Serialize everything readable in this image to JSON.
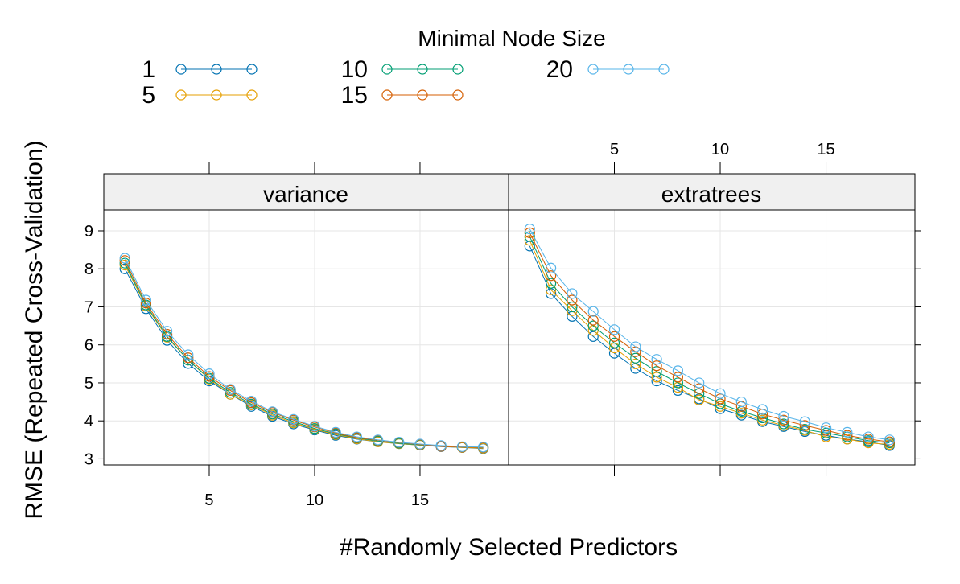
{
  "chart_data": {
    "type": "line",
    "legend": {
      "title": "Minimal Node Size",
      "placement": "top"
    },
    "xlabel": "#Randomly Selected Predictors",
    "ylabel": "RMSE (Repeated Cross-Validation)",
    "x": [
      1,
      2,
      3,
      4,
      5,
      6,
      7,
      8,
      9,
      10,
      11,
      12,
      13,
      14,
      15,
      16,
      17,
      18
    ],
    "xlim": [
      0.0,
      19.2
    ],
    "ylim": [
      2.84,
      9.55
    ],
    "x_ticks": [
      5,
      10,
      15
    ],
    "y_ticks": [
      3,
      4,
      5,
      6,
      7,
      8,
      9
    ],
    "grid": true,
    "panels": [
      {
        "name": "variance",
        "series": [
          {
            "name": "1",
            "color": "#0072B2",
            "values": [
              8.0,
              6.95,
              6.12,
              5.51,
              5.05,
              4.7,
              4.38,
              4.12,
              3.92,
              3.76,
              3.62,
              3.52,
              3.45,
              3.4,
              3.36,
              3.32,
              3.3,
              3.27
            ]
          },
          {
            "name": "5",
            "color": "#E69F00",
            "values": [
              8.1,
              7.02,
              6.2,
              5.6,
              5.1,
              4.7,
              4.42,
              4.15,
              3.95,
              3.78,
              3.64,
              3.53,
              3.45,
              3.4,
              3.36,
              3.33,
              3.3,
              3.28
            ]
          },
          {
            "name": "10",
            "color": "#009E73",
            "values": [
              8.15,
              7.05,
              6.22,
              5.6,
              5.12,
              4.75,
              4.44,
              4.18,
              3.98,
              3.8,
              3.66,
              3.55,
              3.47,
              3.41,
              3.37,
              3.34,
              3.31,
              3.3
            ]
          },
          {
            "name": "15",
            "color": "#D55E00",
            "values": [
              8.22,
              7.1,
              6.28,
              5.66,
              5.17,
              4.8,
              4.48,
              4.22,
              4.02,
              3.84,
              3.68,
              3.56,
              3.49,
              3.43,
              3.38,
              3.33,
              3.31,
              3.3
            ]
          },
          {
            "name": "20",
            "color": "#56B4E9",
            "values": [
              8.28,
              7.18,
              6.36,
              5.74,
              5.24,
              4.83,
              4.52,
              4.24,
              4.04,
              3.86,
              3.7,
              3.58,
              3.5,
              3.44,
              3.39,
              3.35,
              3.32,
              3.31
            ]
          }
        ]
      },
      {
        "name": "extratrees",
        "series": [
          {
            "name": "1",
            "color": "#0072B2",
            "values": [
              8.6,
              7.35,
              6.75,
              6.22,
              5.78,
              5.38,
              5.05,
              4.8,
              4.58,
              4.32,
              4.15,
              3.98,
              3.85,
              3.72,
              3.62,
              3.52,
              3.45,
              3.35
            ]
          },
          {
            "name": "5",
            "color": "#E69F00",
            "values": [
              8.75,
              7.45,
              6.9,
              6.38,
              5.92,
              5.5,
              5.15,
              4.88,
              4.55,
              4.38,
              4.2,
              4.02,
              3.88,
              3.75,
              3.58,
              3.52,
              3.42,
              3.38
            ]
          },
          {
            "name": "10",
            "color": "#009E73",
            "values": [
              8.85,
              7.62,
              7.0,
              6.5,
              6.05,
              5.65,
              5.3,
              5.0,
              4.72,
              4.45,
              4.25,
              4.08,
              3.92,
              3.78,
              3.68,
              3.58,
              3.48,
              3.42
            ]
          },
          {
            "name": "15",
            "color": "#D55E00",
            "values": [
              8.95,
              7.82,
              7.18,
              6.65,
              6.22,
              5.82,
              5.45,
              5.15,
              4.85,
              4.58,
              4.38,
              4.18,
              4.02,
              3.88,
              3.75,
              3.62,
              3.52,
              3.45
            ]
          },
          {
            "name": "20",
            "color": "#56B4E9",
            "values": [
              9.05,
              8.02,
              7.35,
              6.88,
              6.4,
              5.95,
              5.62,
              5.32,
              5.0,
              4.72,
              4.5,
              4.3,
              4.12,
              3.98,
              3.82,
              3.7,
              3.58,
              3.5
            ]
          }
        ]
      }
    ]
  }
}
